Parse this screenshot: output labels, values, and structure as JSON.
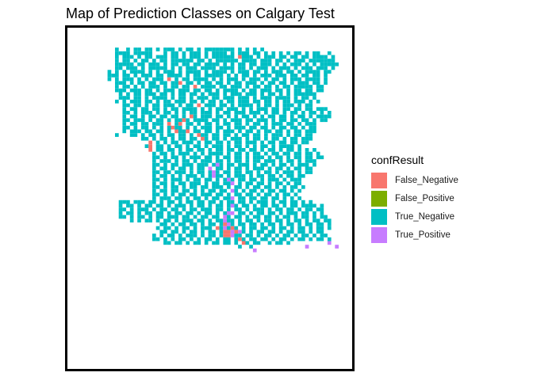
{
  "chart_data": {
    "type": "heatmap",
    "title": "Map of Prediction Classes on Calgary Test",
    "xlabel": "",
    "ylabel": "",
    "grid": false,
    "axes_visible": false,
    "legend": {
      "title": "confResult",
      "placement": "right",
      "entries": [
        {
          "label": "False_Negative",
          "color": "#F8766D"
        },
        {
          "label": "False_Positive",
          "color": "#7CAE00"
        },
        {
          "label": "True_Negative",
          "color": "#00BFC4"
        },
        {
          "label": "True_Positive",
          "color": "#C77CFF"
        }
      ]
    },
    "rows_top_to_bottom": [
      "......................................................................",
      "......................................................................",
      ".............................................................................................................",
      "..........N..N.NN.NN.N.NNN.N.NN.N.NNNNNNNN.N.N.N.N....................",
      "..........NNNN.NNNNN...N.NN.N.NNN.N.NNNN.N.NNN.NN.N.N.N.N.NN.N.NN..N..",
      "..........N.NNN.N.NN.NNN.NN.N.NNN.N.NNNNNN.FNNN.N.NNN.NN.NN.NN.NNNN.N.",
      "..........N.NN.N.NN.N.NN.NNNNNN.NN.N.NNNNNN.NNNN.NNN.NN.N.NNN.NNNNNNN.",
      "..........NNNNN.NN.NNN.N.NN.NN.NN.NNNN.N.N.NN.NN.NNN.N.N.NNN.N.N.NNNNN",
      "..........NN.NNN.N.NNNNN.N.N.NNN.NNNN.NNNN.NN.N.NNN.N.NNN.N.NNN.NNN.N.",
      "........N.N.N.NNNN.N.N.NNN.N.NNNN.N.NNNN.N.NNN.NN.N.NNN.NN.N.NNNN.NN..",
      "........NNN.NN.N.NNN.NN.NNNN.N.NN.NNNNN.N.N.NN.N.NNN.NNN.NN.NN.NN.N...",
      "........N.N.NNN.N.N.NNN.F.N.NN.NNNN.N.N.NNN.N.NNN.N.NN.N.NNN.NNNN.N...",
      "..........NNN.N.NN.NN.NN.NNF.NN.N.NN.NN.N.NN.NNN.N.NN.NN.N.NNN.NN.N...",
      "..........N.NN.N.N.NNN.N.NN.NN.F.NNNN.NN.NNN.N.NN.NN.N.NN.NNNNN.NN....",
      "..........NNN.NNN.NN.N.NNN.NNN.NN.NN.N.NNNN.N.NN.NNN.NN.N.NN.NN.NN....",
      "...........N.N.NN.NNN.NN.N.NN.NN.N.NNN.N.NNN.NNN.N.NN.N.N.NNNNNN......",
      "...........NNN.NN.N.NNNN.N.NN.N.NNN.NN.NNN.NNN.N.NNN.NNNN.N.NN.N......",
      "..........N.N.NNN.NN.N.NN.NNN.NN.N.NN.N.NN.NNN.NN.NN.N.NN.NNN.N.N.....",
      "............NN.NN.N.NN.NNN.N.NN.F.NNN.NN.N.NNNN.N.NN.N.NNN.N.NN.......",
      "............N.NN.NN.NN.N.NN.NNNN.N.N.NN.NNN.N.N.NNN.NN.NN.NN.NN.NNN...",
      "............NN.N.NNN.N.NN.N.N.NN.NNN.N.NN.NNN.NNN.N.NN.N.NN.N.NN.N.N..",
      "............N.NN.N.NN.NN.NN.N.FN.NNN.NN.N.N.NN.N.N.NN.NN.N.NN.N.NNNN..",
      "............NN.NNN.N.NN.N.NNFN.NNNN.NN.N.NNN.NN.NNN.N.NN.NN.NN.N.NN...",
      "............N.NN.NN.NNN.F.NF.NN.N.NN.N.NN.NN.N.NN.N.NNN.NN.N.NNN......",
      "............NN.N.NN.N.N.NFNN.N.N.NNN.NN.N.NNN.NN.NN.N.NN.NN.N.NN......",
      "............N.NNN.NN.NN.N.FNNF.NN.NN.N.NNN.N.NN.N.NN.NN.N.NN.NNN......",
      "..........N...NN.N.NN.N.NN.NN.N.FNN.NN.NN.N.NN.NN.N.NNN.N.NN.NN.......",
      ".................NN.N.NN.N.NN.NN.FN.NN.N.NNN.N.NN.N.NN.N.NN.NNN.......",
      "...................F.N.N.NN.NNN.N.NN.NN.N.NN.NNN.N.NN.NN.NN.NN........",
      "..................NF.NN.N.NN.N.NN.N.NNN.N.NN.N.N.NN.N.NNNN.N..........",
      "...................F.NN.NN.N.NN.NN.N.NN.NN.NN.NN.N.NN.N.NN.N.N.N......",
      "....................N.NN.N.NNN.N.N.NNNN.N.NN.N.NN.N.NN.NN.NN.NN.N.....",
      "....................NN.N.NN.N.NNN.NN.N.NN.NN.N.NNN.N.NN.N.NN.NN.NN....",
      "....................N.NNN.N.NN.N.NNN.NN.N.NN.N.NN.NNN.N.NN.N.NNN......",
      "....................NN.N.NN.NNN.NNN.NPN.NN.NNN.N.NN.N.NN.N.NNN.N......",
      "....................N.NN.N.NN.N.NN.P.NN.N.NN.N.NNN.N.NN.N.NN.NN.......",
      "....................NN.NN.NNN.N.NN.NPN.NN.NN.NN.N.NN.N.NNN.N.NN.......",
      "....................N.NN.N.N.NNN.N.NPNN.N.NNN.N.NN.NN.N.NN.NN.........",
      "....................NN.N.NNN.N.NN.NN.N.NPN.NN.NN.N.NNN.N.NNN..........",
      "....................N.NN.N.NN.NNN.N.NN.NNP.N.NN.NN.N.NN.N.NN..........",
      "....................NN.N.NN.N.NN.NN.NNN.N.NN.N.NN.NN.N.N.NN.N.........",
      "....................N.NN.NN.NN.N.N.NN.NN.PN.N.NN.N.NN.NN.N.N..........",
      "....................NN.N.N.NN.NN.NNN.NN.N.NN.NN.N.NN.N.NN.N...........",
      "....................N.NNN.NN.N.NN.N.NN.NNP.NN.NN.NN.NN.N.N.N..........",
      "...........NNN.NNN.NN.N.NN.N.NN.NN.NN.N.NN.NN.N.NNN.N.NN.NN.N.N.......",
      "...........N.NN.N.NN.NN.N.NNN.N.NN.N.NN.NPN.NN.N.NN.NN.N.NN.NNNN.N....",
      "...........NN.N.NNN.N.NN.NN.N.NN.NNN.NN.N.NN.N.NNN.N.NN.NN.N.NN.NN....",
      "...........N.NN.N.NN.NN.N.NN.NN.N.NN.N.NPP.NN.N.NN.NN.N.NNN.NN.N.N....",
      "...........NN.N.NN.N.NN.NNN.NN.N.NN.NN.PN.NN.N.NN.NN.N.NN.N.NN.N.NN...",
      "..............N.N.NN.N.NN.N.NNN.NN.N.NNPNN.N.NN.N.NN.NN.N.NN.N.NN.NN..",
      "......................NN.N.NN.NN.N.NN.NFPN.NN.NN.N.NN.N.NN.N.NN.NN.N..",
      ".....................N.NN.N.NN.N.NNN.FNPNFN.N.NN.NN.N.NN.N.NN.N.NN.N..",
      "......................NN.NN.N.NN.N.NN.NFFPFPN.N.NN.NN.N.NN.NN.N.NN....",
      "....................N.N.NN.N.NNN.N.NN.NFFPNN.NN.N.NN.N.NN.N.NN.N.NN...",
      "....................NN.N.N.NN.N.N.NN.N.NN.NFN.NN.NN.N.NN.N.NN.N.NN.N..",
      ".......................NN.NN.N.NN.N.NN.NN.N.FN.NN..N.NN.N..........P..",
      "...........................................N..N..............P.......P.",
      "...............................................P......................"
    ]
  }
}
